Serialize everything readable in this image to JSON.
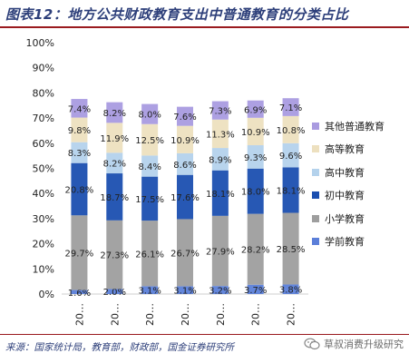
{
  "title": "图表12：地方公共财政教育支出中普通教育的分类占比",
  "source": "来源：国家统计局，教育部，财政部，国金证券研究所",
  "watermark": "草叔消费升级研究",
  "colors": {
    "title": "#2d3f7a",
    "rule": "#9a1b1f"
  },
  "chart_data": {
    "type": "bar",
    "stacked": true,
    "categories": [
      "20…",
      "20…",
      "20…",
      "20…",
      "20…",
      "20…",
      "20…"
    ],
    "ylim": [
      0,
      100
    ],
    "yticks": [
      "0%",
      "10%",
      "20%",
      "30%",
      "40%",
      "50%",
      "60%",
      "70%",
      "80%",
      "90%",
      "100%"
    ],
    "legend_position": "right",
    "series": [
      {
        "name": "学前教育",
        "color": "#5b7fd9",
        "values": [
          1.6,
          2.0,
          3.1,
          3.1,
          3.2,
          3.7,
          3.8
        ]
      },
      {
        "name": "小学教育",
        "color": "#9e9e9e",
        "values": [
          29.7,
          27.3,
          26.1,
          26.7,
          27.9,
          28.2,
          28.5
        ]
      },
      {
        "name": "初中教育",
        "color": "#1b4fb0",
        "values": [
          20.8,
          18.7,
          17.5,
          17.6,
          18.1,
          18.0,
          18.1
        ]
      },
      {
        "name": "高中教育",
        "color": "#b4d2ec",
        "values": [
          8.3,
          8.2,
          8.4,
          8.6,
          8.9,
          9.3,
          9.6
        ]
      },
      {
        "name": "高等教育",
        "color": "#ede0bf",
        "values": [
          9.8,
          11.9,
          12.5,
          10.9,
          11.3,
          10.9,
          10.8
        ]
      },
      {
        "name": "其他普通教育",
        "color": "#a99be0",
        "values": [
          7.4,
          8.2,
          8.0,
          7.6,
          7.3,
          6.9,
          7.1
        ]
      }
    ],
    "data_labels": [
      [
        "1.6%",
        "2.0%",
        "3.1%",
        "3.1%",
        "3.2%",
        "3.7%",
        "3.8%"
      ],
      [
        "29.7%",
        "27.3%",
        "26.1%",
        "26.7%",
        "27.9%",
        "28.2%",
        "28.5%"
      ],
      [
        "20.8%",
        "18.7%",
        "17.5%",
        "17.6%",
        "18.1%",
        "18.0%",
        "18.1%"
      ],
      [
        "8.3%",
        "8.2%",
        "8.4%",
        "8.6%",
        "8.9%",
        "9.3%",
        "9.6%"
      ],
      [
        "9.8%",
        "11.9%",
        "12.5%",
        "10.9%",
        "11.3%",
        "10.9%",
        "10.8%"
      ],
      [
        "7.4%",
        "8.2%",
        "8.0%",
        "7.6%",
        "7.3%",
        "6.9%",
        "7.1%"
      ]
    ]
  }
}
